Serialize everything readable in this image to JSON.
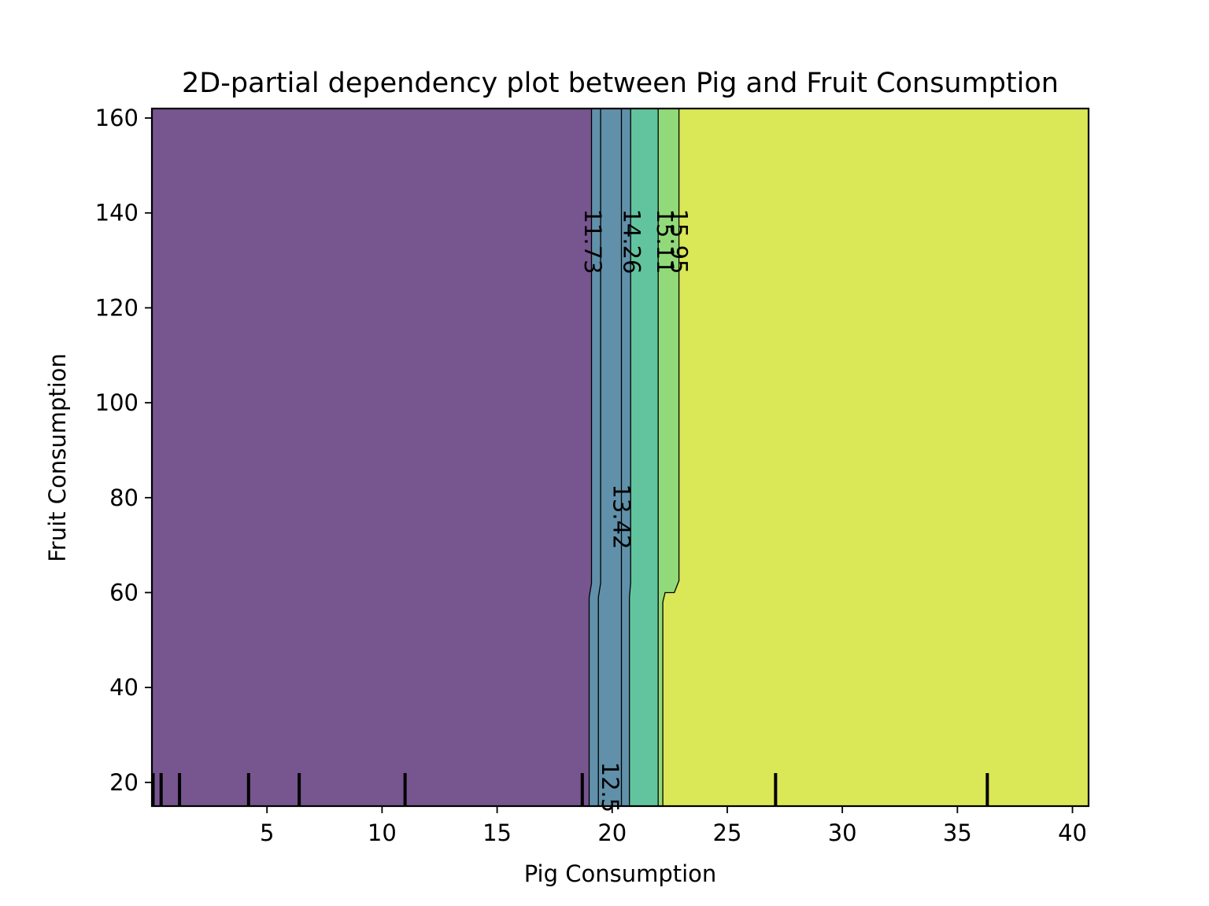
{
  "chart_data": {
    "type": "contour",
    "title": "2D-partial dependency plot between Pig and Fruit Consumption",
    "xlabel": "Pig Consumption",
    "ylabel": "Fruit Consumption",
    "xlim": [
      0,
      40.7
    ],
    "ylim": [
      15,
      162
    ],
    "xticks": [
      5,
      10,
      15,
      20,
      25,
      30,
      35,
      40
    ],
    "yticks": [
      20,
      40,
      60,
      80,
      100,
      120,
      140,
      160
    ],
    "levels": [
      {
        "value": "11.73",
        "color": "#77558f"
      },
      {
        "value": "12.5",
        "color": "#6190aa"
      },
      {
        "value": "13.42",
        "color": "#5e8fa9"
      },
      {
        "value": "14.26",
        "color": "#62c49e"
      },
      {
        "value": "15.11",
        "color": "#92da79"
      },
      {
        "value": "15.95",
        "color": "#dae756"
      }
    ],
    "contours": [
      {
        "level": "11.73",
        "points": [
          [
            19.1,
            162
          ],
          [
            19.1,
            62
          ],
          [
            19.0,
            59
          ],
          [
            19.0,
            15
          ]
        ]
      },
      {
        "level": "12.5",
        "points": [
          [
            19.5,
            162
          ],
          [
            19.5,
            62
          ],
          [
            19.4,
            59
          ],
          [
            19.4,
            15
          ]
        ]
      },
      {
        "level": "13.42",
        "points": [
          [
            20.4,
            162
          ],
          [
            20.4,
            15
          ]
        ]
      },
      {
        "level": "14.26",
        "points": [
          [
            20.8,
            162
          ],
          [
            20.8,
            62
          ],
          [
            20.75,
            59
          ],
          [
            20.75,
            15
          ]
        ]
      },
      {
        "level": "15.11",
        "points": [
          [
            22.0,
            162
          ],
          [
            22.0,
            15
          ]
        ]
      },
      {
        "level": "15.95",
        "points": [
          [
            22.9,
            162
          ],
          [
            22.9,
            62.5
          ],
          [
            22.7,
            60
          ],
          [
            22.3,
            60
          ],
          [
            22.2,
            58
          ],
          [
            22.2,
            15
          ]
        ]
      }
    ],
    "region_fills": [
      {
        "color": "#77558f",
        "points": [
          [
            0,
            15
          ],
          [
            0,
            162
          ],
          [
            19.1,
            162
          ],
          [
            19.1,
            62
          ],
          [
            19.0,
            59
          ],
          [
            19.0,
            15
          ]
        ]
      },
      {
        "color": "#6190aa",
        "points": [
          [
            19.0,
            15
          ],
          [
            19.0,
            59
          ],
          [
            19.1,
            62
          ],
          [
            19.1,
            162
          ],
          [
            20.8,
            162
          ],
          [
            20.8,
            62
          ],
          [
            20.75,
            59
          ],
          [
            20.75,
            15
          ]
        ]
      },
      {
        "color": "#62c49e",
        "points": [
          [
            20.75,
            15
          ],
          [
            20.75,
            59
          ],
          [
            20.8,
            62
          ],
          [
            20.8,
            162
          ],
          [
            22.0,
            162
          ],
          [
            22.0,
            15
          ]
        ]
      },
      {
        "color": "#92da79",
        "points": [
          [
            22.0,
            15
          ],
          [
            22.0,
            162
          ],
          [
            22.9,
            162
          ],
          [
            22.9,
            62.5
          ],
          [
            22.7,
            60
          ],
          [
            22.3,
            60
          ],
          [
            22.2,
            58
          ],
          [
            22.2,
            15
          ]
        ]
      },
      {
        "color": "#dae756",
        "points": [
          [
            22.2,
            15
          ],
          [
            22.2,
            58
          ],
          [
            22.3,
            60
          ],
          [
            22.7,
            60
          ],
          [
            22.9,
            62.5
          ],
          [
            22.9,
            162
          ],
          [
            40.7,
            162
          ],
          [
            40.7,
            15
          ]
        ]
      }
    ],
    "contour_labels": [
      {
        "text": "11.73",
        "x": 19.15,
        "y": 134
      },
      {
        "text": "14.26",
        "x": 20.85,
        "y": 134
      },
      {
        "text": "15.11",
        "x": 22.3,
        "y": 134
      },
      {
        "text": "15.95",
        "x": 22.9,
        "y": 134
      },
      {
        "text": "13.42",
        "x": 20.4,
        "y": 76
      },
      {
        "text": "12.5",
        "x": 19.9,
        "y": 19
      }
    ],
    "rug_x": [
      0.05,
      0.4,
      1.2,
      4.2,
      6.4,
      11.0,
      18.7,
      27.1,
      36.3
    ]
  }
}
